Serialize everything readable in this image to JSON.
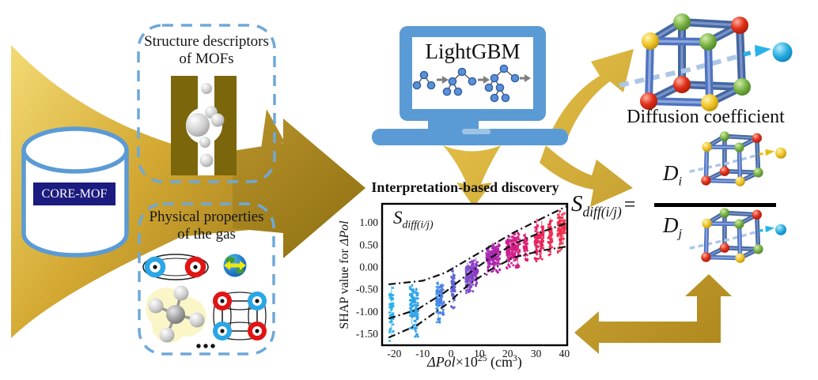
{
  "figure": {
    "type": "graphical-abstract",
    "background": "#ffffff"
  },
  "palette": {
    "gold_light": "#f3da74",
    "gold_mid": "#d3a832",
    "gold_dark": "#a5831b",
    "blue_accent": "#5b9bd5",
    "dashed_box_border": "#6fa8d8",
    "navy_label_bg": "#1b1b80",
    "pore_block": "#7c660c",
    "cube_rod": "#4f73c0",
    "sphere_red": "#d42a1e",
    "sphere_yellow": "#e3bc14",
    "sphere_green": "#69a33c",
    "sphere_cyan": "#29b2e8"
  },
  "database": {
    "label": "CORE-MOF"
  },
  "structure_box": {
    "line1": "Structure descriptors",
    "line2": "of MOFs"
  },
  "physical_box": {
    "line1": "Physical properties",
    "line2": "of the gas",
    "ellipsis": "•••"
  },
  "laptop": {
    "label": "LightGBM"
  },
  "discovery": {
    "title": "Interpretation-based discovery"
  },
  "diffusion": {
    "label": "Diffusion coefficient"
  },
  "equation": {
    "symbol": "S",
    "subscript": "diff(i/j)",
    "equals": "=",
    "numerator_symbol": "D",
    "numerator_sub": "i",
    "denominator_symbol": "D",
    "denominator_sub": "j"
  },
  "chart_data": {
    "type": "scatter",
    "title": "Interpretation-based discovery",
    "inset_label": {
      "symbol": "S",
      "subscript": "diff(i/j)"
    },
    "x_label_var": "ΔPol",
    "x_label_mid": "×10",
    "x_label_exp": "25",
    "x_label_unit": " (cm",
    "x_label_unit_exp": "3",
    "x_label_close": ")",
    "y_label_prefix": "SHAP value for ",
    "y_label_var": "ΔPol",
    "x_ticks": [
      -20,
      -10,
      0,
      10,
      20,
      30,
      40
    ],
    "y_ticks": [
      1.0,
      0.5,
      0.0,
      -0.5,
      -1.0,
      -1.5
    ],
    "xlim": [
      -24.3,
      41.0
    ],
    "ylim": [
      -1.75,
      1.43
    ],
    "grid": false,
    "legend": false,
    "clusters": [
      {
        "x": -21.0,
        "y_min": -1.57,
        "y_max": -0.42,
        "color": "#2bb1ea",
        "n": 55
      },
      {
        "x": -13.8,
        "y_min": -1.28,
        "y_max": -0.38,
        "color": "#2ba6ea",
        "n": 70
      },
      {
        "x": -12.3,
        "y_min": -1.5,
        "y_max": -0.45,
        "color": "#30a0e8",
        "n": 60
      },
      {
        "x": -4.5,
        "y_min": -1.12,
        "y_max": -0.3,
        "color": "#3f8ee6",
        "n": 60
      },
      {
        "x": -3.2,
        "y_min": -0.95,
        "y_max": -0.35,
        "color": "#4f7ce0",
        "n": 40
      },
      {
        "x": 0.8,
        "y_min": -0.8,
        "y_max": 0.02,
        "color": "#5f63d4",
        "n": 55
      },
      {
        "x": 5.8,
        "y_min": -0.5,
        "y_max": 0.1,
        "color": "#7a4ecb",
        "n": 45
      },
      {
        "x": 7.2,
        "y_min": -0.42,
        "y_max": 0.18,
        "color": "#8343c6",
        "n": 60
      },
      {
        "x": 8.8,
        "y_min": -0.35,
        "y_max": 0.22,
        "color": "#8c3ac2",
        "n": 50
      },
      {
        "x": 13.2,
        "y_min": -0.05,
        "y_max": 0.5,
        "color": "#a62ab4",
        "n": 55
      },
      {
        "x": 15.0,
        "y_min": 0.0,
        "y_max": 0.55,
        "color": "#ad27ae",
        "n": 60
      },
      {
        "x": 16.6,
        "y_min": -0.02,
        "y_max": 0.6,
        "color": "#b424a8",
        "n": 45
      },
      {
        "x": 20.2,
        "y_min": 0.08,
        "y_max": 0.72,
        "color": "#c91f90",
        "n": 60
      },
      {
        "x": 22.0,
        "y_min": 0.12,
        "y_max": 0.8,
        "color": "#d11e86",
        "n": 60
      },
      {
        "x": 23.6,
        "y_min": 0.1,
        "y_max": 0.78,
        "color": "#d61e80",
        "n": 45
      },
      {
        "x": 26.3,
        "y_min": 0.2,
        "y_max": 0.78,
        "color": "#df1f72",
        "n": 40
      },
      {
        "x": 30.2,
        "y_min": 0.26,
        "y_max": 1.1,
        "color": "#e62360",
        "n": 55
      },
      {
        "x": 32.0,
        "y_min": 0.3,
        "y_max": 1.05,
        "color": "#e8255b",
        "n": 45
      },
      {
        "x": 35.0,
        "y_min": 0.38,
        "y_max": 1.12,
        "color": "#ec2a52",
        "n": 45
      },
      {
        "x": 38.3,
        "y_min": 0.45,
        "y_max": 1.3,
        "color": "#ee2d4d",
        "n": 55
      },
      {
        "x": 39.6,
        "y_min": 0.5,
        "y_max": 1.25,
        "color": "#ef2f4a",
        "n": 40
      }
    ],
    "guide_lines": [
      {
        "name": "upper-envelope",
        "points": [
          [
            -22,
            -0.38
          ],
          [
            -10,
            -0.3
          ],
          [
            -2,
            -0.12
          ],
          [
            6,
            0.18
          ],
          [
            14,
            0.48
          ],
          [
            22,
            0.78
          ],
          [
            32,
            1.1
          ],
          [
            41,
            1.38
          ]
        ]
      },
      {
        "name": "center-trend",
        "points": [
          [
            -22,
            -1.15
          ],
          [
            -12,
            -0.95
          ],
          [
            -2,
            -0.55
          ],
          [
            6,
            -0.15
          ],
          [
            14,
            0.22
          ],
          [
            22,
            0.52
          ],
          [
            32,
            0.8
          ],
          [
            41,
            1.0
          ]
        ]
      },
      {
        "name": "lower-envelope",
        "points": [
          [
            -22,
            -1.58
          ],
          [
            -12,
            -1.3
          ],
          [
            -2,
            -0.85
          ],
          [
            6,
            -0.4
          ],
          [
            14,
            -0.05
          ],
          [
            22,
            0.22
          ],
          [
            32,
            0.38
          ],
          [
            41,
            0.47
          ]
        ]
      }
    ]
  }
}
